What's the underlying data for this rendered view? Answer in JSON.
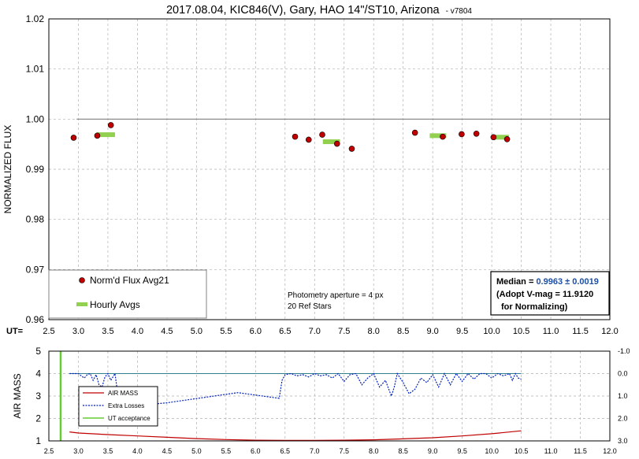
{
  "colors": {
    "flux": "#c00000",
    "hourly": "#92d050",
    "airmass": "#c00000",
    "losses": "#0020c0",
    "ut_acceptance": "#66cc33",
    "median_value": "#1f4fa0",
    "reference": "#808080",
    "grid": "#b0b0b0"
  },
  "chart_data": [
    {
      "type": "scatter",
      "title": "2017.08.04, KIC846(V), Gary, HAO 14\"/ST10, Arizona",
      "title_suffix": "- v7804",
      "xlabel": "UT=",
      "ylabel": "NORMALIZED FLUX",
      "xlim": [
        2.5,
        12.0
      ],
      "ylim": [
        0.96,
        1.02
      ],
      "x_ticks": [
        "2.5",
        "3.0",
        "3.5",
        "4.0",
        "4.5",
        "5.0",
        "5.5",
        "6.0",
        "6.5",
        "7.0",
        "7.5",
        "8.0",
        "8.5",
        "9.0",
        "9.5",
        "10.0",
        "10.5",
        "11.0",
        "11.5",
        "12.0"
      ],
      "y_ticks": [
        "0.96",
        "0.97",
        "0.98",
        "0.99",
        "1.00",
        "1.01",
        "1.02"
      ],
      "grid": true,
      "reference_line": {
        "y": 1.0,
        "x_start": 2.97,
        "x_end": 12.0
      },
      "series": [
        {
          "name": "Norm'd Flux Avg21",
          "x": [
            2.92,
            3.32,
            3.55,
            6.67,
            6.9,
            7.13,
            7.38,
            7.63,
            8.7,
            9.17,
            9.49,
            9.74,
            10.03,
            10.26
          ],
          "y": [
            0.9963,
            0.9967,
            0.9988,
            0.9965,
            0.9959,
            0.9969,
            0.9951,
            0.9941,
            0.9973,
            0.9965,
            0.997,
            0.9971,
            0.9964,
            0.996
          ]
        },
        {
          "name": "Hourly Avgs",
          "segments": [
            {
              "x1": 3.31,
              "x2": 3.62,
              "y": 0.9969
            },
            {
              "x1": 7.14,
              "x2": 7.43,
              "y": 0.9955
            },
            {
              "x1": 8.95,
              "x2": 9.23,
              "y": 0.9967
            },
            {
              "x1": 10.02,
              "x2": 10.29,
              "y": 0.9964
            }
          ]
        }
      ],
      "legend": {
        "placement": "bottom-left",
        "entries": [
          "Norm'd Flux Avg21",
          "Hourly Avgs"
        ]
      },
      "annotation": {
        "line1": "Photometry aperture = 4 px",
        "line2": "20 Ref Stars"
      },
      "median_box": {
        "label": "Median = ",
        "value": "0.9963 ± 0.0019",
        "line2": "(Adopt V-mag = 11.9120",
        "line3": "for Normalizing)"
      }
    },
    {
      "type": "line",
      "ylabel": "AIR MASS",
      "xlim": [
        2.5,
        12.0
      ],
      "ylim": [
        1,
        5
      ],
      "y2lim": [
        -1.0,
        3.0
      ],
      "x_ticks": [
        "2.5",
        "3.0",
        "3.5",
        "4.0",
        "4.5",
        "5.0",
        "5.5",
        "6.0",
        "6.5",
        "7.0",
        "7.5",
        "8.0",
        "8.5",
        "9.0",
        "9.5",
        "10.0",
        "10.5",
        "11.0",
        "11.5",
        "12.0"
      ],
      "y_ticks": [
        "1",
        "2",
        "3",
        "4",
        "5"
      ],
      "y2_ticks": [
        "-1.0",
        "0.0",
        "1.0",
        "2.0",
        "3.0"
      ],
      "grid": true,
      "reference_line": {
        "y2": 0.0,
        "x_start": 2.85,
        "x_end": 10.5
      },
      "ut_acceptance_x": 2.7,
      "series": [
        {
          "name": "AIR MASS",
          "x": [
            2.85,
            3.0,
            3.5,
            4.0,
            4.5,
            5.0,
            5.5,
            6.0,
            6.5,
            7.0,
            7.5,
            8.0,
            8.5,
            9.0,
            9.5,
            10.0,
            10.5
          ],
          "y": [
            1.4,
            1.35,
            1.28,
            1.22,
            1.16,
            1.1,
            1.06,
            1.03,
            1.02,
            1.02,
            1.03,
            1.05,
            1.09,
            1.14,
            1.22,
            1.32,
            1.45
          ]
        },
        {
          "name": "Extra Losses",
          "x": [
            2.85,
            3.0,
            3.05,
            3.1,
            3.15,
            3.2,
            3.25,
            3.3,
            3.35,
            3.4,
            3.45,
            3.5,
            3.55,
            3.62,
            3.7,
            4.5,
            5.7,
            6.4,
            6.45,
            6.5,
            6.6,
            6.7,
            6.8,
            6.9,
            7.0,
            7.1,
            7.2,
            7.3,
            7.4,
            7.5,
            7.6,
            7.7,
            7.8,
            7.9,
            8.0,
            8.1,
            8.2,
            8.3,
            8.35,
            8.4,
            8.5,
            8.6,
            8.7,
            8.8,
            8.9,
            9.0,
            9.1,
            9.2,
            9.3,
            9.4,
            9.5,
            9.6,
            9.7,
            9.8,
            9.9,
            10.0,
            10.1,
            10.2,
            10.3,
            10.35,
            10.4,
            10.45,
            10.5
          ],
          "y": [
            0.0,
            0.0,
            0.1,
            0.2,
            0.05,
            0.0,
            0.3,
            0.05,
            0.5,
            0.6,
            0.15,
            0.0,
            0.3,
            0.0,
            1.5,
            1.3,
            0.85,
            1.1,
            0.3,
            0.05,
            0.0,
            0.1,
            0.05,
            0.15,
            0.0,
            0.1,
            0.05,
            0.2,
            0.0,
            0.35,
            0.05,
            0.0,
            0.5,
            0.2,
            0.0,
            0.6,
            0.3,
            1.0,
            0.6,
            0.0,
            0.4,
            0.9,
            0.7,
            0.2,
            0.4,
            0.05,
            0.6,
            0.0,
            0.5,
            0.0,
            0.35,
            0.0,
            0.25,
            0.0,
            0.0,
            0.2,
            0.0,
            0.1,
            0.0,
            0.3,
            0.0,
            0.2,
            0.25
          ]
        }
      ],
      "legend": {
        "placement": "top-left",
        "entries": [
          "AIR MASS",
          "Extra Losses",
          "UT acceptance"
        ]
      }
    }
  ]
}
